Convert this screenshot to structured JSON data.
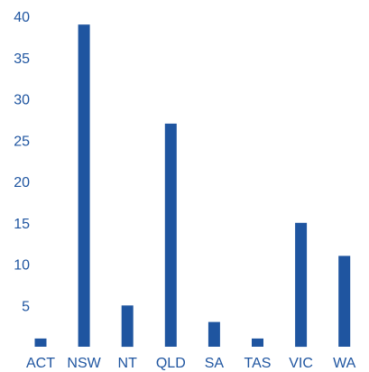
{
  "chart_data": {
    "type": "bar",
    "title": "",
    "xlabel": "",
    "ylabel": "",
    "categories": [
      "ACT",
      "NSW",
      "NT",
      "QLD",
      "SA",
      "TAS",
      "VIC",
      "WA"
    ],
    "values": [
      1,
      39,
      5,
      27,
      3,
      1,
      15,
      11
    ],
    "ylim": [
      0,
      40
    ],
    "yticks": [
      5,
      10,
      15,
      20,
      25,
      30,
      35,
      40
    ],
    "grid": false,
    "legend": "none",
    "bar_color": "#1f55a0",
    "label_color": "#1f55a0"
  }
}
